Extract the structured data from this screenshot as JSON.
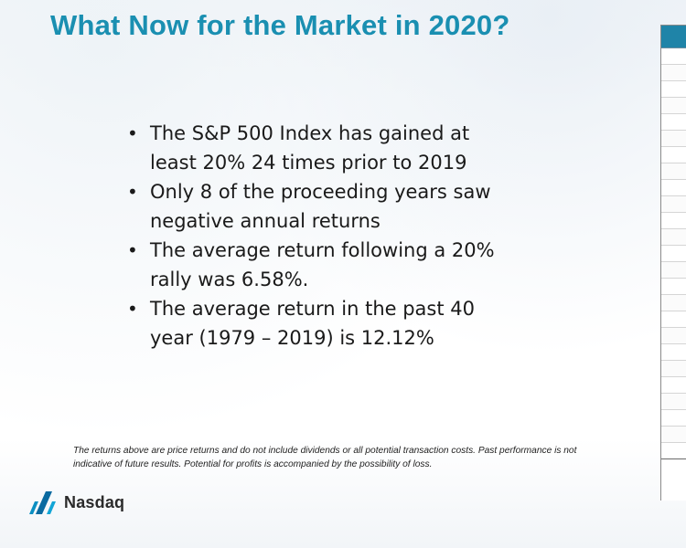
{
  "slide": {
    "title": "What Now for the Market in 2020?",
    "bullets": [
      "The S&P 500 Index has gained at least 20% 24 times prior to 2019",
      "Only 8 of the proceeding years saw negative annual returns",
      "The average return following a 20% rally was 6.58%.",
      "The average return in the past 40 year (1979 – 2019) is 12.12%"
    ],
    "bullet_glyph": "•",
    "disclaimer": "The returns above are price returns and do not include dividends or all potential transaction costs.  Past performance is not indicative of future results. Potential for profits is accompanied by the possibility of loss.",
    "logo": {
      "text": "Nasdaq",
      "icon": "nasdaq-logo-mark-icon"
    }
  },
  "colors": {
    "title": "#1a8fb1",
    "table_header": "#1f84a8",
    "body_text": "#1a1a1a"
  }
}
